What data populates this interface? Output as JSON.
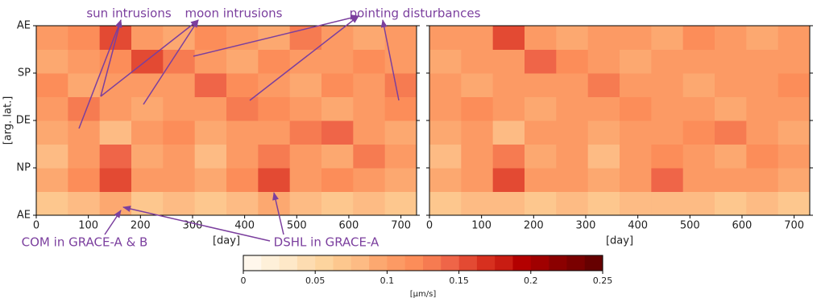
{
  "chart_data": [
    {
      "type": "heatmap",
      "xlabel": "[day]",
      "ylabel": "[arg. lat.]",
      "xlim": [
        0,
        730
      ],
      "xticks": [
        0,
        100,
        200,
        300,
        400,
        500,
        600,
        700
      ],
      "ylim": [
        0,
        360
      ],
      "yticks": [
        {
          "value": 0,
          "label": "AE"
        },
        {
          "value": 90,
          "label": "NP"
        },
        {
          "value": 180,
          "label": "DE"
        },
        {
          "value": 270,
          "label": "SP"
        },
        {
          "value": 360,
          "label": "AE"
        }
      ],
      "values": [
        [
          0.07,
          0.08,
          0.09,
          0.07,
          0.08,
          0.07,
          0.08,
          0.09,
          0.08,
          0.07,
          0.08,
          0.07
        ],
        [
          0.09,
          0.12,
          0.16,
          0.1,
          0.11,
          0.09,
          0.12,
          0.15,
          0.11,
          0.12,
          0.1,
          0.09
        ],
        [
          0.08,
          0.1,
          0.14,
          0.09,
          0.1,
          0.08,
          0.11,
          0.13,
          0.1,
          0.09,
          0.13,
          0.1
        ],
        [
          0.09,
          0.11,
          0.08,
          0.1,
          0.12,
          0.09,
          0.1,
          0.11,
          0.13,
          0.14,
          0.11,
          0.09
        ],
        [
          0.11,
          0.13,
          0.1,
          0.09,
          0.11,
          0.1,
          0.13,
          0.12,
          0.1,
          0.09,
          0.1,
          0.12
        ],
        [
          0.12,
          0.09,
          0.1,
          0.11,
          0.1,
          0.14,
          0.12,
          0.1,
          0.09,
          0.12,
          0.11,
          0.13
        ],
        [
          0.09,
          0.1,
          0.12,
          0.15,
          0.13,
          0.1,
          0.09,
          0.12,
          0.11,
          0.1,
          0.12,
          0.1
        ],
        [
          0.1,
          0.12,
          0.16,
          0.11,
          0.09,
          0.12,
          0.1,
          0.09,
          0.13,
          0.1,
          0.09,
          0.11
        ]
      ],
      "annotations": [
        "sun intrusions",
        "moon intrusions",
        "pointing disturbances",
        "COM in GRACE-A & B",
        "DSHL in GRACE-A"
      ],
      "annotation_color": "#7b3f9e",
      "colorbar": {
        "label": "[μm/s]",
        "clim": [
          0,
          0.25
        ],
        "ticks": [
          0,
          0.05,
          0.1,
          0.15,
          0.2,
          0.25
        ],
        "colors": [
          "#fff7ec",
          "#fef0d9",
          "#fee8c8",
          "#fddcb1",
          "#fdd49e",
          "#fdc78e",
          "#fdbb84",
          "#fca870",
          "#fc9a64",
          "#fc8d59",
          "#f67b51",
          "#ef6548",
          "#e34a33",
          "#d7301f",
          "#c91c12",
          "#b30000",
          "#a00000",
          "#8b0000",
          "#7a0000",
          "#660000"
        ]
      }
    },
    {
      "type": "heatmap",
      "xlabel": "[day]",
      "xlim": [
        0,
        730
      ],
      "xticks": [
        0,
        100,
        200,
        300,
        400,
        500,
        600,
        700
      ],
      "ylim": [
        0,
        360
      ],
      "yticks": [
        0,
        90,
        180,
        270,
        360
      ],
      "values": [
        [
          0.07,
          0.08,
          0.08,
          0.07,
          0.08,
          0.07,
          0.08,
          0.08,
          0.08,
          0.07,
          0.08,
          0.07
        ],
        [
          0.09,
          0.11,
          0.15,
          0.1,
          0.1,
          0.09,
          0.11,
          0.14,
          0.11,
          0.11,
          0.1,
          0.09
        ],
        [
          0.08,
          0.1,
          0.13,
          0.09,
          0.1,
          0.08,
          0.1,
          0.12,
          0.1,
          0.09,
          0.12,
          0.1
        ],
        [
          0.09,
          0.1,
          0.08,
          0.1,
          0.11,
          0.09,
          0.1,
          0.11,
          0.12,
          0.13,
          0.11,
          0.09
        ],
        [
          0.1,
          0.12,
          0.1,
          0.09,
          0.11,
          0.1,
          0.12,
          0.11,
          0.1,
          0.09,
          0.1,
          0.11
        ],
        [
          0.11,
          0.09,
          0.1,
          0.1,
          0.1,
          0.13,
          0.11,
          0.1,
          0.09,
          0.11,
          0.11,
          0.12
        ],
        [
          0.09,
          0.1,
          0.11,
          0.14,
          0.12,
          0.1,
          0.09,
          0.11,
          0.1,
          0.1,
          0.11,
          0.1
        ],
        [
          0.1,
          0.11,
          0.15,
          0.11,
          0.09,
          0.11,
          0.1,
          0.09,
          0.12,
          0.1,
          0.09,
          0.1
        ]
      ]
    }
  ]
}
